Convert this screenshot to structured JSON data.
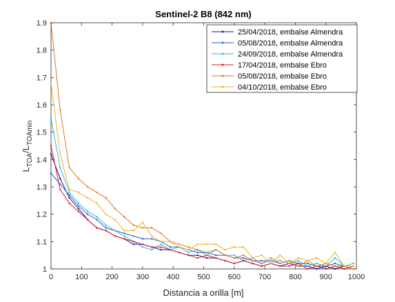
{
  "chart_data": {
    "type": "line",
    "title": "Sentinel-2 B8 (842 nm)",
    "xlabel": "Distancia a orilla [m]",
    "ylabel": {
      "base": "L",
      "sub1": "TOA",
      "sep": "/L",
      "sub2": "TOAmin"
    },
    "xlim": [
      0,
      1000
    ],
    "ylim": [
      1,
      1.9
    ],
    "xticks": [
      "0",
      "100",
      "200",
      "300",
      "400",
      "500",
      "600",
      "700",
      "800",
      "900",
      "1000"
    ],
    "yticks": [
      "1",
      "1.1",
      "1.2",
      "1.3",
      "1.4",
      "1.5",
      "1.6",
      "1.7",
      "1.8",
      "1.9"
    ],
    "grid": false,
    "legend_position": "top-right",
    "series": [
      {
        "name": "25/04/2018, embalse Almendra",
        "color": "#14128a",
        "x": [
          0,
          30,
          60,
          90,
          120,
          150,
          180,
          210,
          240,
          270,
          300,
          330,
          360,
          390,
          420,
          450,
          480,
          510,
          540,
          570,
          600,
          630,
          660,
          690,
          720,
          750,
          780,
          810,
          840,
          870,
          900,
          930,
          960,
          990
        ],
        "y": [
          1.42,
          1.33,
          1.26,
          1.22,
          1.18,
          1.15,
          1.14,
          1.12,
          1.11,
          1.09,
          1.09,
          1.08,
          1.07,
          1.07,
          1.06,
          1.05,
          1.05,
          1.04,
          1.04,
          1.03,
          1.02,
          1.03,
          1.02,
          1.01,
          1.02,
          1.01,
          1.02,
          1.01,
          1.01,
          1.0,
          1.01,
          1.0,
          1.01,
          1.01
        ]
      },
      {
        "name": "05/08/2018, embalse Almendra",
        "color": "#1e62c8",
        "x": [
          0,
          30,
          60,
          90,
          120,
          150,
          180,
          210,
          240,
          270,
          300,
          330,
          360,
          390,
          420,
          450,
          480,
          510,
          540,
          570,
          600,
          630,
          660,
          690,
          720,
          750,
          780,
          810,
          840,
          870,
          900,
          930,
          960,
          990
        ],
        "y": [
          1.35,
          1.31,
          1.27,
          1.23,
          1.2,
          1.18,
          1.15,
          1.14,
          1.13,
          1.12,
          1.11,
          1.11,
          1.1,
          1.08,
          1.08,
          1.07,
          1.06,
          1.06,
          1.05,
          1.05,
          1.04,
          1.04,
          1.03,
          1.03,
          1.03,
          1.02,
          1.03,
          1.02,
          1.02,
          1.01,
          1.01,
          1.02,
          1.01,
          1.01
        ]
      },
      {
        "name": "24/09/2018, embalse Almendra",
        "color": "#33b4e8",
        "x": [
          0,
          30,
          60,
          90,
          120,
          150,
          180,
          210,
          240,
          270,
          300,
          330,
          360,
          390,
          420,
          450,
          480,
          510,
          540,
          570,
          600,
          630,
          660,
          690,
          720,
          750,
          780,
          810,
          840,
          870,
          900,
          930,
          960,
          990
        ],
        "y": [
          1.55,
          1.37,
          1.28,
          1.24,
          1.21,
          1.19,
          1.16,
          1.14,
          1.12,
          1.1,
          1.08,
          1.07,
          1.09,
          1.07,
          1.08,
          1.06,
          1.07,
          1.06,
          1.07,
          1.05,
          1.05,
          1.03,
          1.04,
          1.02,
          1.03,
          1.03,
          1.02,
          1.03,
          1.01,
          1.02,
          1.01,
          1.04,
          1.01,
          1.02
        ]
      },
      {
        "name": "17/04/2018, embalse Ebro",
        "color": "#d8182a",
        "x": [
          0,
          30,
          60,
          90,
          120,
          150,
          180,
          210,
          240,
          270,
          300,
          330,
          360,
          390,
          420,
          450,
          480,
          510,
          540,
          570,
          600,
          630,
          660,
          690,
          720,
          750,
          780,
          810,
          840,
          870,
          900,
          930,
          960,
          990
        ],
        "y": [
          1.45,
          1.29,
          1.24,
          1.21,
          1.18,
          1.15,
          1.14,
          1.12,
          1.11,
          1.1,
          1.09,
          1.08,
          1.08,
          1.07,
          1.06,
          1.05,
          1.04,
          1.05,
          1.04,
          1.03,
          1.02,
          1.03,
          1.02,
          1.01,
          1.02,
          1.01,
          1.01,
          1.02,
          1.0,
          1.01,
          1.0,
          1.01,
          1.0,
          1.01
        ]
      },
      {
        "name": "05/08/2018, embalse Ebro",
        "color": "#e8741a",
        "x": [
          0,
          30,
          60,
          90,
          120,
          150,
          180,
          210,
          240,
          270,
          300,
          330,
          360,
          390,
          420,
          450,
          480,
          510,
          540,
          570,
          600,
          630,
          660,
          690,
          720,
          750,
          780,
          810,
          840,
          870,
          900,
          930,
          960,
          990
        ],
        "y": [
          1.9,
          1.58,
          1.37,
          1.33,
          1.3,
          1.28,
          1.26,
          1.22,
          1.19,
          1.16,
          1.15,
          1.15,
          1.13,
          1.1,
          1.09,
          1.08,
          1.07,
          1.05,
          1.07,
          1.05,
          1.04,
          1.05,
          1.03,
          1.02,
          1.04,
          1.02,
          1.03,
          1.01,
          1.03,
          1.01,
          1.02,
          1.01,
          1.01,
          1.0
        ]
      },
      {
        "name": "04/10/2018, embalse Ebro",
        "color": "#f0b01e",
        "x": [
          0,
          30,
          60,
          90,
          120,
          150,
          180,
          210,
          240,
          270,
          300,
          330,
          360,
          390,
          420,
          450,
          480,
          510,
          540,
          570,
          600,
          630,
          660,
          690,
          720,
          750,
          780,
          810,
          840,
          870,
          900,
          930,
          960,
          990
        ],
        "y": [
          1.68,
          1.42,
          1.29,
          1.28,
          1.26,
          1.24,
          1.2,
          1.18,
          1.14,
          1.14,
          1.17,
          1.12,
          1.1,
          1.1,
          1.08,
          1.07,
          1.09,
          1.09,
          1.09,
          1.07,
          1.08,
          1.08,
          1.04,
          1.05,
          1.02,
          1.05,
          1.02,
          1.04,
          1.03,
          1.04,
          1.02,
          1.06,
          1.01,
          1.01
        ]
      }
    ]
  }
}
